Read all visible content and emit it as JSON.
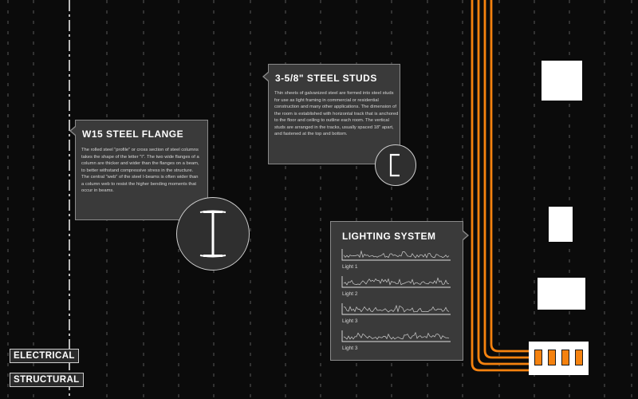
{
  "cards": {
    "steel_flange": {
      "title": "W15  STEEL FLANGE",
      "body": "The rolled steel \"profile\" or cross section of steel columns takes the shape of the letter \"I\". The two wide flanges of a column are thicker and wider than the flanges on a beam, to better withstand compressive stress in the structure. The central \"web\" of the steel I-beams is often wider than a column web to resist the higher bending moments that occur in beams."
    },
    "steel_studs": {
      "title": "3-5/8\"  STEEL STUDS",
      "body": "Thin sheets of galvanized steel are formed into steel studs for use as light framing in commercial or residential construction and many other applications. The dimension of the room is established with horizontal track that is anchored to the floor and ceiling to outline each room. The vertical studs are arranged in the tracks, usually spaced 18\" apart, and fastened at the top and bottom."
    },
    "lighting": {
      "title": "LIGHTING SYSTEM",
      "charts": [
        {
          "label": "Light 1"
        },
        {
          "label": "Light 2"
        },
        {
          "label": "Light 3"
        },
        {
          "label": "Light 3"
        }
      ]
    }
  },
  "legend": {
    "electrical": "ELECTRICAL",
    "structural": "STRUCTURAL"
  },
  "colors": {
    "background": "#0b0b0b",
    "card": "#3a3a3a",
    "card_border": "#8a8a8a",
    "wire": "#f5820f",
    "grid": "#5a5a5a"
  },
  "icons": {
    "flange_badge": "i-beam-icon",
    "stud_badge": "c-channel-icon"
  }
}
